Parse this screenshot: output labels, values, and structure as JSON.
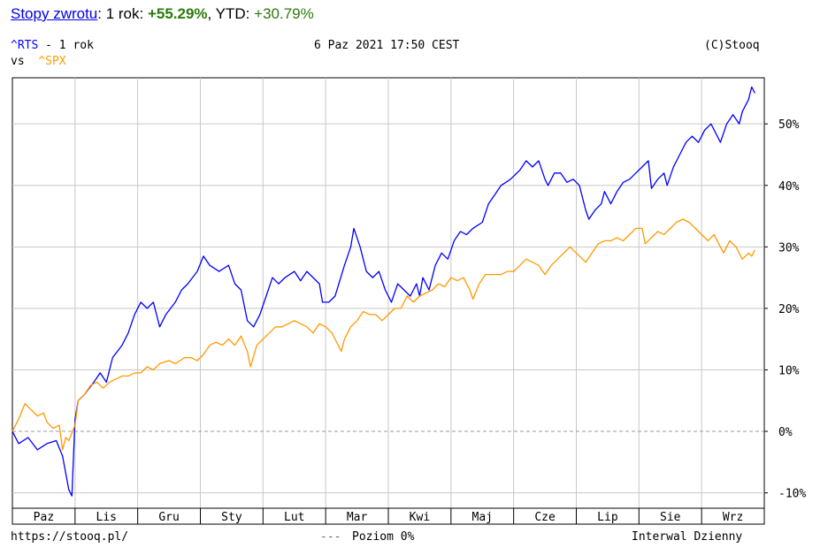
{
  "header": {
    "link_label": "Stopy zwrotu",
    "period_label": ": 1 rok: ",
    "period_value": "+55.29%",
    "sep": ", YTD: ",
    "ytd_value": "+30.79%"
  },
  "chart_header": {
    "symbol_main": "^RTS",
    "period": " - 1 rok",
    "datetime": "6 Paz 2021 17:50 CEST",
    "copyright": "(C)Stooq",
    "vs_label": "vs",
    "symbol_compare": "^SPX"
  },
  "footer": {
    "url": "https://stooq.pl/",
    "zero_legend": "Poziom 0%",
    "interval": "Interwal Dzienny"
  },
  "colors": {
    "rts": "#0000ff",
    "spx": "#ff9900",
    "grid": "#c8c8c8",
    "zero_line": "#999999"
  },
  "chart_data": {
    "type": "line",
    "title": "",
    "ylim": [
      -12.5,
      57.5
    ],
    "y_ticks": [
      -10,
      0,
      10,
      20,
      30,
      40,
      50
    ],
    "y_tick_labels": [
      "-10%",
      "0%",
      "10%",
      "20%",
      "30%",
      "40%",
      "50%"
    ],
    "x_tick_labels": [
      "Paz",
      "Lis",
      "Gru",
      "Sty",
      "Lut",
      "Mar",
      "Kwi",
      "Maj",
      "Cze",
      "Lip",
      "Sie",
      "Wrz"
    ],
    "x_range": [
      0,
      12
    ],
    "zero_level": 0,
    "series": [
      {
        "name": "^RTS",
        "color": "#0000ff",
        "points": [
          [
            0.0,
            0
          ],
          [
            0.1,
            -2
          ],
          [
            0.25,
            -1
          ],
          [
            0.4,
            -3
          ],
          [
            0.55,
            -2
          ],
          [
            0.7,
            -1.5
          ],
          [
            0.8,
            -4
          ],
          [
            0.9,
            -9.5
          ],
          [
            0.95,
            -10.5
          ],
          [
            1.0,
            2
          ],
          [
            1.05,
            5
          ],
          [
            1.15,
            6
          ],
          [
            1.3,
            8
          ],
          [
            1.4,
            9.5
          ],
          [
            1.5,
            8
          ],
          [
            1.6,
            12
          ],
          [
            1.75,
            14
          ],
          [
            1.85,
            16
          ],
          [
            1.95,
            19
          ],
          [
            2.05,
            21
          ],
          [
            2.15,
            20
          ],
          [
            2.25,
            21
          ],
          [
            2.35,
            17
          ],
          [
            2.45,
            19
          ],
          [
            2.6,
            21
          ],
          [
            2.7,
            23
          ],
          [
            2.8,
            24
          ],
          [
            2.95,
            26
          ],
          [
            3.05,
            28.5
          ],
          [
            3.15,
            27
          ],
          [
            3.3,
            26
          ],
          [
            3.45,
            27
          ],
          [
            3.55,
            24
          ],
          [
            3.65,
            23
          ],
          [
            3.75,
            18
          ],
          [
            3.85,
            17
          ],
          [
            3.95,
            19
          ],
          [
            4.05,
            22
          ],
          [
            4.15,
            25
          ],
          [
            4.25,
            24
          ],
          [
            4.35,
            25
          ],
          [
            4.5,
            26
          ],
          [
            4.6,
            24.5
          ],
          [
            4.7,
            26
          ],
          [
            4.8,
            25
          ],
          [
            4.9,
            24
          ],
          [
            4.95,
            21
          ],
          [
            5.05,
            21
          ],
          [
            5.15,
            22
          ],
          [
            5.3,
            27
          ],
          [
            5.4,
            30
          ],
          [
            5.45,
            33
          ],
          [
            5.55,
            30
          ],
          [
            5.65,
            26
          ],
          [
            5.75,
            25
          ],
          [
            5.85,
            26
          ],
          [
            5.95,
            23
          ],
          [
            6.05,
            21
          ],
          [
            6.15,
            24
          ],
          [
            6.25,
            23
          ],
          [
            6.35,
            22
          ],
          [
            6.45,
            24
          ],
          [
            6.5,
            22
          ],
          [
            6.55,
            25
          ],
          [
            6.65,
            23
          ],
          [
            6.75,
            27
          ],
          [
            6.85,
            29
          ],
          [
            6.95,
            28
          ],
          [
            7.05,
            31
          ],
          [
            7.15,
            32.5
          ],
          [
            7.25,
            32
          ],
          [
            7.35,
            33
          ],
          [
            7.5,
            34
          ],
          [
            7.6,
            37
          ],
          [
            7.7,
            38.5
          ],
          [
            7.8,
            40
          ],
          [
            7.95,
            41
          ],
          [
            8.1,
            42.5
          ],
          [
            8.2,
            44
          ],
          [
            8.3,
            43
          ],
          [
            8.4,
            44
          ],
          [
            8.5,
            41
          ],
          [
            8.55,
            40
          ],
          [
            8.65,
            42
          ],
          [
            8.75,
            42
          ],
          [
            8.85,
            40.5
          ],
          [
            8.95,
            41
          ],
          [
            9.05,
            40
          ],
          [
            9.15,
            36
          ],
          [
            9.2,
            34.5
          ],
          [
            9.3,
            36
          ],
          [
            9.4,
            37
          ],
          [
            9.45,
            39
          ],
          [
            9.55,
            37
          ],
          [
            9.65,
            39
          ],
          [
            9.75,
            40.5
          ],
          [
            9.85,
            41
          ],
          [
            9.95,
            42
          ],
          [
            10.05,
            43
          ],
          [
            10.15,
            44
          ],
          [
            10.2,
            39.5
          ],
          [
            10.3,
            41
          ],
          [
            10.4,
            42
          ],
          [
            10.45,
            40
          ],
          [
            10.55,
            43
          ],
          [
            10.65,
            45
          ],
          [
            10.75,
            47
          ],
          [
            10.85,
            48
          ],
          [
            10.95,
            47
          ],
          [
            11.05,
            49
          ],
          [
            11.15,
            50
          ],
          [
            11.25,
            48
          ],
          [
            11.3,
            47
          ],
          [
            11.4,
            50
          ],
          [
            11.5,
            51.5
          ],
          [
            11.6,
            50
          ],
          [
            11.65,
            52
          ],
          [
            11.75,
            54
          ],
          [
            11.8,
            56
          ],
          [
            11.85,
            55
          ]
        ]
      },
      {
        "name": "^SPX",
        "color": "#ff9900",
        "points": [
          [
            0.0,
            0
          ],
          [
            0.1,
            2
          ],
          [
            0.2,
            4.5
          ],
          [
            0.3,
            3.5
          ],
          [
            0.4,
            2.5
          ],
          [
            0.5,
            3
          ],
          [
            0.55,
            1.5
          ],
          [
            0.65,
            0.5
          ],
          [
            0.75,
            1
          ],
          [
            0.8,
            -3
          ],
          [
            0.85,
            -1
          ],
          [
            0.9,
            -1.5
          ],
          [
            1.0,
            1
          ],
          [
            1.05,
            5
          ],
          [
            1.15,
            6
          ],
          [
            1.25,
            7.5
          ],
          [
            1.35,
            8
          ],
          [
            1.45,
            7
          ],
          [
            1.55,
            8
          ],
          [
            1.65,
            8.5
          ],
          [
            1.75,
            9
          ],
          [
            1.85,
            9
          ],
          [
            1.95,
            9.5
          ],
          [
            2.05,
            9.5
          ],
          [
            2.15,
            10.5
          ],
          [
            2.25,
            10
          ],
          [
            2.35,
            11
          ],
          [
            2.5,
            11.5
          ],
          [
            2.6,
            11
          ],
          [
            2.75,
            12
          ],
          [
            2.85,
            12
          ],
          [
            2.95,
            11.5
          ],
          [
            3.05,
            12.5
          ],
          [
            3.15,
            14
          ],
          [
            3.25,
            14.5
          ],
          [
            3.35,
            14
          ],
          [
            3.45,
            15
          ],
          [
            3.55,
            14
          ],
          [
            3.65,
            15.5
          ],
          [
            3.75,
            13
          ],
          [
            3.8,
            10.5
          ],
          [
            3.9,
            14
          ],
          [
            4.0,
            15
          ],
          [
            4.1,
            16
          ],
          [
            4.2,
            17
          ],
          [
            4.3,
            17
          ],
          [
            4.4,
            17.5
          ],
          [
            4.5,
            18
          ],
          [
            4.6,
            17.5
          ],
          [
            4.7,
            17
          ],
          [
            4.8,
            16
          ],
          [
            4.9,
            17.5
          ],
          [
            5.0,
            17
          ],
          [
            5.1,
            16
          ],
          [
            5.2,
            14
          ],
          [
            5.25,
            13
          ],
          [
            5.3,
            15
          ],
          [
            5.4,
            17
          ],
          [
            5.5,
            18
          ],
          [
            5.6,
            19.5
          ],
          [
            5.7,
            19
          ],
          [
            5.8,
            19
          ],
          [
            5.9,
            18
          ],
          [
            6.0,
            19
          ],
          [
            6.1,
            20
          ],
          [
            6.2,
            20
          ],
          [
            6.3,
            22
          ],
          [
            6.4,
            21
          ],
          [
            6.5,
            22
          ],
          [
            6.6,
            22.5
          ],
          [
            6.7,
            23
          ],
          [
            6.8,
            24
          ],
          [
            6.9,
            23.5
          ],
          [
            7.0,
            25
          ],
          [
            7.1,
            24.5
          ],
          [
            7.2,
            25
          ],
          [
            7.3,
            23
          ],
          [
            7.35,
            21.5
          ],
          [
            7.45,
            24
          ],
          [
            7.55,
            25.5
          ],
          [
            7.65,
            25.5
          ],
          [
            7.8,
            25.5
          ],
          [
            7.9,
            26
          ],
          [
            8.0,
            26
          ],
          [
            8.1,
            27
          ],
          [
            8.2,
            28
          ],
          [
            8.3,
            27.5
          ],
          [
            8.4,
            27
          ],
          [
            8.5,
            25.5
          ],
          [
            8.6,
            27
          ],
          [
            8.7,
            28
          ],
          [
            8.8,
            29
          ],
          [
            8.9,
            30
          ],
          [
            9.0,
            29
          ],
          [
            9.1,
            28
          ],
          [
            9.15,
            27.5
          ],
          [
            9.25,
            29
          ],
          [
            9.35,
            30.5
          ],
          [
            9.45,
            31
          ],
          [
            9.55,
            31
          ],
          [
            9.65,
            31.5
          ],
          [
            9.75,
            31
          ],
          [
            9.85,
            32
          ],
          [
            9.95,
            33
          ],
          [
            10.05,
            33
          ],
          [
            10.1,
            30.5
          ],
          [
            10.2,
            31.5
          ],
          [
            10.3,
            32.5
          ],
          [
            10.4,
            32
          ],
          [
            10.5,
            33
          ],
          [
            10.6,
            34
          ],
          [
            10.7,
            34.5
          ],
          [
            10.8,
            34
          ],
          [
            10.9,
            33
          ],
          [
            11.0,
            32
          ],
          [
            11.1,
            31
          ],
          [
            11.2,
            32
          ],
          [
            11.3,
            30
          ],
          [
            11.35,
            29
          ],
          [
            11.45,
            31
          ],
          [
            11.55,
            30
          ],
          [
            11.6,
            29
          ],
          [
            11.65,
            28
          ],
          [
            11.75,
            29
          ],
          [
            11.8,
            28.5
          ],
          [
            11.85,
            29.5
          ]
        ]
      }
    ]
  }
}
